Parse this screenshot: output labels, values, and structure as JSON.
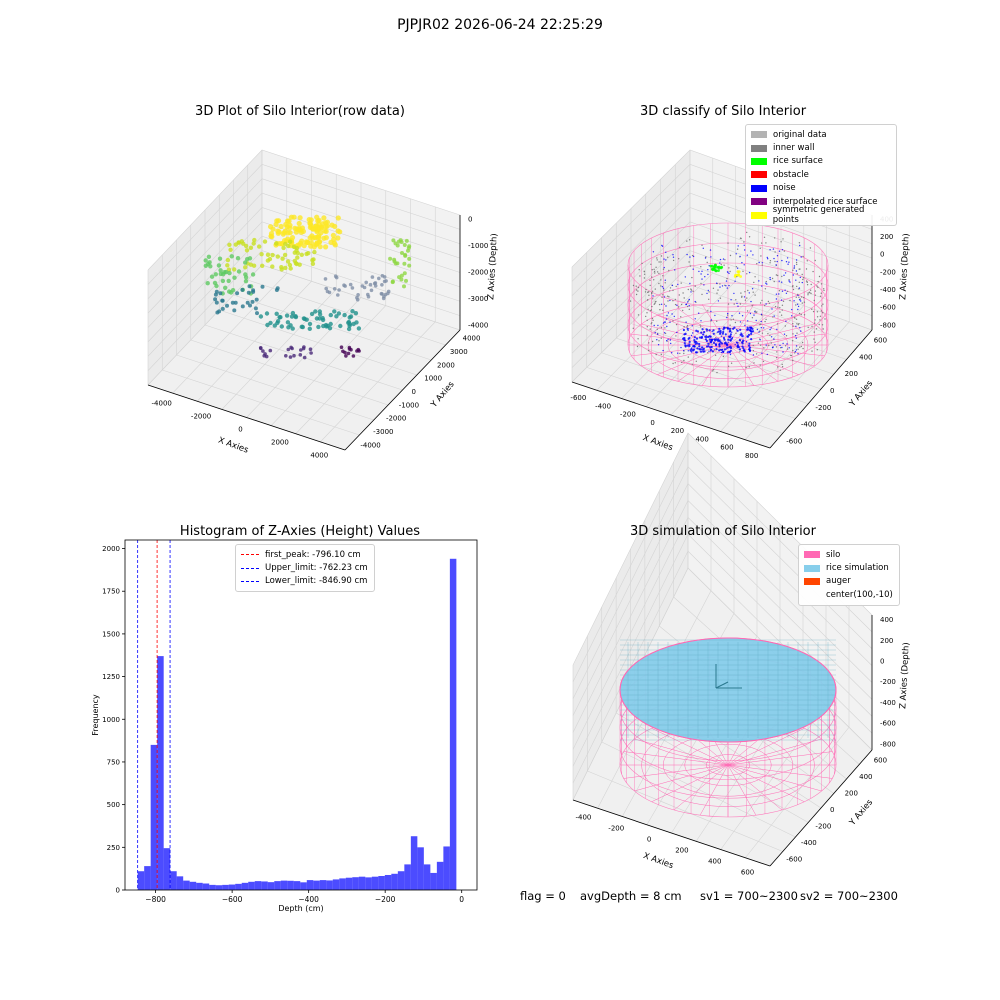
{
  "suptitle": "PJPJR02 2026-06-24 22:25:29",
  "panels": {
    "raw": {
      "title": "3D Plot of Silo Interior(row data)",
      "xlabel": "X Axies",
      "ylabel": "Y Axies",
      "zlabel": "Z Axies (Depth)",
      "xticks": [
        "-4000",
        "-2000",
        "0",
        "2000",
        "4000"
      ],
      "yticks": [
        "4000",
        "3000",
        "2000",
        "1000",
        "0",
        "-1000",
        "-2000",
        "-3000",
        "-4000"
      ],
      "zticks": [
        "0",
        "-1000",
        "-2000",
        "-3000",
        "-4000"
      ]
    },
    "classify": {
      "title": "3D classify of Silo Interior",
      "xlabel": "X Axies",
      "ylabel": "Y Axies",
      "zlabel": "Z Axies (Depth)",
      "xticks": [
        "-600",
        "-400",
        "-200",
        "0",
        "200",
        "400",
        "600",
        "800"
      ],
      "yticks": [
        "600",
        "400",
        "200",
        "0",
        "-200",
        "-400",
        "-600"
      ],
      "zticks": [
        "400",
        "200",
        "0",
        "-200",
        "-400",
        "-600",
        "-800"
      ],
      "legend": [
        {
          "label": "original data",
          "color": "#b3b3b3"
        },
        {
          "label": "inner wall",
          "color": "#808080"
        },
        {
          "label": "rice surface",
          "color": "#00ff00"
        },
        {
          "label": "obstacle",
          "color": "#ff0000"
        },
        {
          "label": "noise",
          "color": "#0000ff"
        },
        {
          "label": "interpolated rice surface",
          "color": "#800080"
        },
        {
          "label": "symmetric generated points",
          "color": "#ffff00"
        }
      ]
    },
    "histogram": {
      "title": "Histogram of Z-Axies (Height) Values",
      "xlabel": "Depth (cm)",
      "ylabel": "Frequency",
      "xticks": [
        "-800",
        "-600",
        "-400",
        "-200",
        "0"
      ],
      "yticks": [
        "0",
        "250",
        "500",
        "750",
        "1000",
        "1250",
        "1500",
        "1750",
        "2000"
      ],
      "legend": [
        {
          "label": "first_peak: -796.10 cm",
          "color": "#ff0000"
        },
        {
          "label": "Upper_limit: -762.23 cm",
          "color": "#0000ff"
        },
        {
          "label": "Lower_limit: -846.90 cm",
          "color": "#0000ff"
        }
      ]
    },
    "simulation": {
      "title": "3D simulation of Silo Interior",
      "xlabel": "X Axies",
      "ylabel": "Y Axies",
      "zlabel": "Z Axies (Depth)",
      "xticks": [
        "-400",
        "-200",
        "0",
        "200",
        "400",
        "600"
      ],
      "yticks": [
        "600",
        "400",
        "200",
        "0",
        "-200",
        "-400",
        "-600"
      ],
      "zticks": [
        "400",
        "200",
        "0",
        "-200",
        "-400",
        "-600",
        "-800"
      ],
      "legend": [
        {
          "label": "silo",
          "color": "#ff69b4"
        },
        {
          "label": "rice simulation",
          "color": "#87ceeb"
        },
        {
          "label": "auger",
          "color": "#ff4500"
        },
        {
          "label": "center(100,-10)",
          "color": ""
        }
      ]
    }
  },
  "status": {
    "flag": "flag = 0",
    "avg_depth": "avgDepth = 8 cm",
    "sv1": "sv1 = 700~2300",
    "sv2": "sv2 = 700~2300"
  },
  "chart_data": {
    "type": "bar",
    "title": "Histogram of Z-Axies (Height) Values",
    "xlabel": "Depth (cm)",
    "ylabel": "Frequency",
    "xlim": [
      -880,
      40
    ],
    "ylim": [
      0,
      2050
    ],
    "bin_width": 17,
    "bin_left_edges": [
      -846.9,
      -829.9,
      -812.9,
      -795.9,
      -778.9,
      -761.9,
      -744.9,
      -727.9,
      -710.9,
      -693.9,
      -676.9,
      -659.9,
      -642.9,
      -625.9,
      -608.9,
      -591.9,
      -574.9,
      -557.9,
      -540.9,
      -523.9,
      -506.9,
      -489.9,
      -472.9,
      -455.9,
      -438.9,
      -421.9,
      -404.9,
      -387.9,
      -370.9,
      -353.9,
      -336.9,
      -319.9,
      -302.9,
      -285.9,
      -268.9,
      -251.9,
      -234.9,
      -217.9,
      -200.9,
      -183.9,
      -166.9,
      -149.9,
      -132.9,
      -115.9,
      -98.9,
      -81.9,
      -64.9,
      -47.9,
      -30.9,
      -13.9
    ],
    "values": [
      110,
      140,
      850,
      1370,
      245,
      110,
      80,
      55,
      48,
      42,
      38,
      30,
      28,
      30,
      32,
      36,
      42,
      48,
      52,
      50,
      46,
      52,
      55,
      54,
      52,
      45,
      58,
      55,
      58,
      56,
      62,
      68,
      72,
      75,
      78,
      74,
      78,
      82,
      88,
      95,
      110,
      150,
      315,
      250,
      150,
      100,
      165,
      255,
      1940,
      0
    ],
    "vlines": [
      {
        "label": "first_peak: -796.10 cm",
        "x": -796.1,
        "color": "#ff0000"
      },
      {
        "label": "Upper_limit: -762.23 cm",
        "x": -762.23,
        "color": "#0000ff"
      },
      {
        "label": "Lower_limit: -846.90 cm",
        "x": -846.9,
        "color": "#0000ff"
      }
    ]
  }
}
